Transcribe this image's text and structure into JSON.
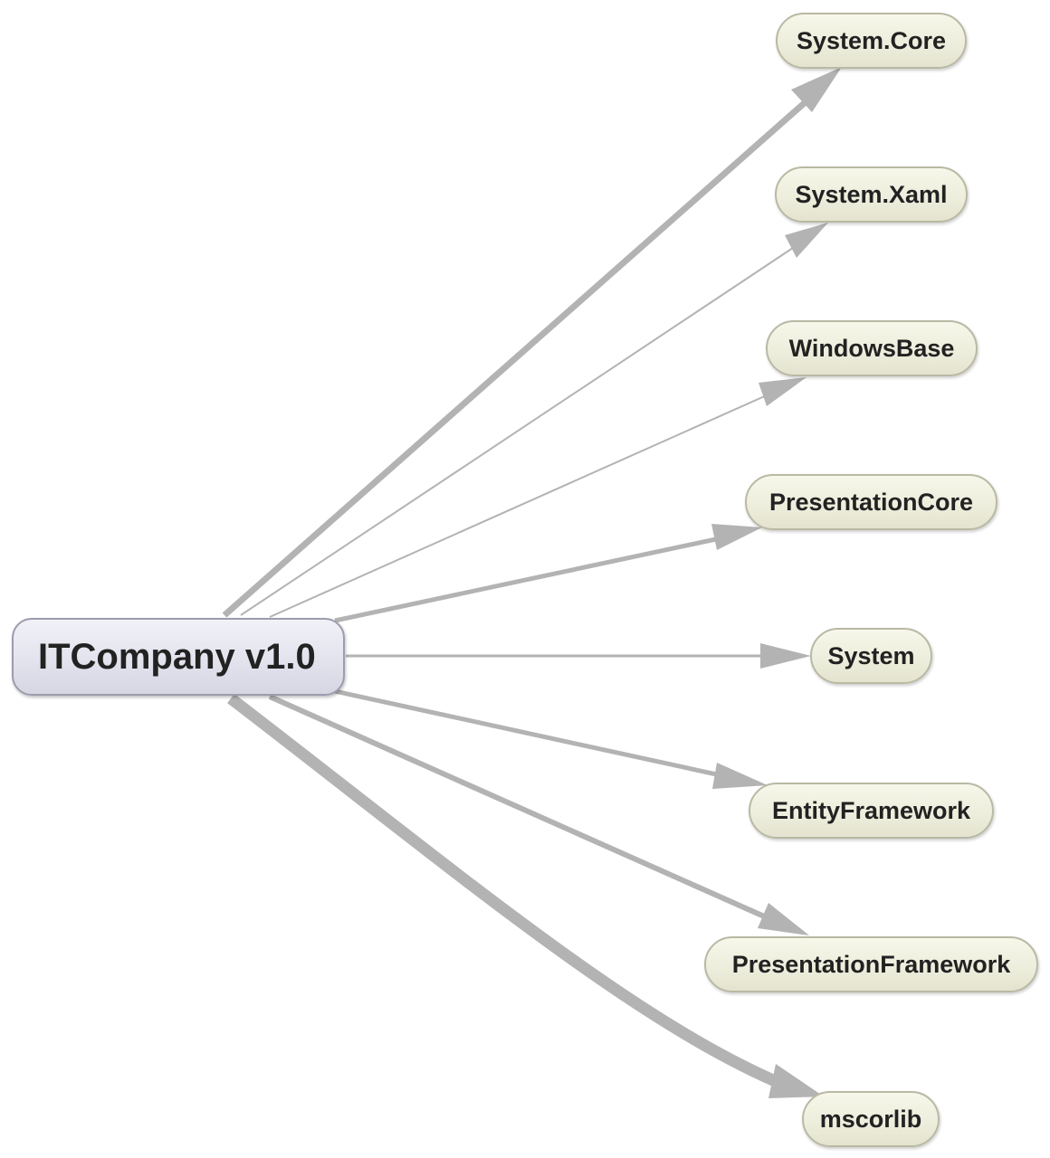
{
  "root": {
    "label": "ITCompany v1.0"
  },
  "dependencies": [
    {
      "label": "System.Core"
    },
    {
      "label": "System.Xaml"
    },
    {
      "label": "WindowsBase"
    },
    {
      "label": "PresentationCore"
    },
    {
      "label": "System"
    },
    {
      "label": "EntityFramework"
    },
    {
      "label": "PresentationFramework"
    },
    {
      "label": "mscorlib"
    }
  ],
  "colors": {
    "edge": "#b3b3b3",
    "root_fill": "#e3e3ee",
    "dep_fill": "#ededdc",
    "text": "#222222"
  }
}
